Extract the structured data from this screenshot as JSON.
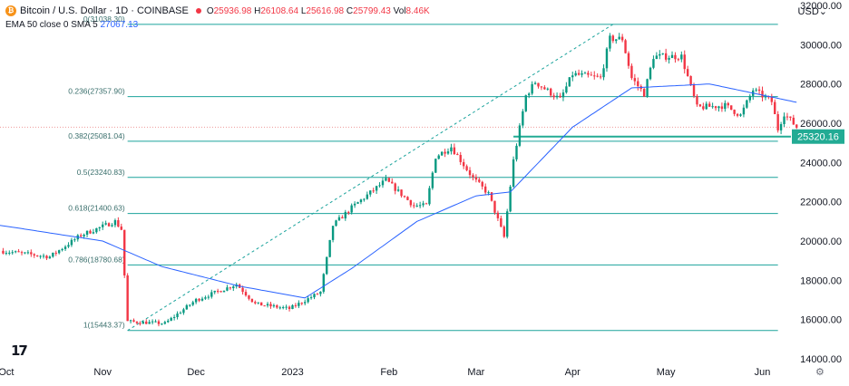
{
  "header": {
    "symbol": "Bitcoin / U.S. Dollar · 1D · COINBASE",
    "o_label": "O",
    "o_value": "25936.98",
    "h_label": "H",
    "h_value": "26108.64",
    "l_label": "L",
    "l_value": "25616.98",
    "c_label": "C",
    "c_value": "25799.43",
    "vol_label": "Vol",
    "vol_value": "8.46K",
    "indicator": "EMA 50 close 0 SMA 5",
    "indicator_value": "27067.13",
    "currency": "USD"
  },
  "icons": [
    "bitcoin-icon",
    "tradingview-logo-icon",
    "settings-icon"
  ],
  "colors": {
    "up": "#089981",
    "down": "#f23645",
    "ema": "#2962ff",
    "fib": "#1ba39c",
    "current_price_line": "#ef9a9a",
    "support_label_bg": "#22ab94"
  },
  "chart_data": {
    "type": "candlestick",
    "title": "Bitcoin / U.S. Dollar · 1D · COINBASE",
    "y_axis": {
      "min": 14000,
      "max": 32000,
      "ticks": [
        14000,
        16000,
        18000,
        20000,
        22000,
        24000,
        26000,
        28000,
        30000,
        32000
      ],
      "tick_labels": [
        "14000.00",
        "16000.00",
        "18000.00",
        "20000.00",
        "22000.00",
        "24000.00",
        "26000.00",
        "28000.00",
        "30000.00",
        "32000.00"
      ],
      "position": "right",
      "unit": "USD"
    },
    "x_axis": {
      "start": "2022-09-29",
      "end": "2023-06-30",
      "ticks": [
        {
          "date": "2022-10-01",
          "label": "Oct"
        },
        {
          "date": "2022-11-01",
          "label": "Nov"
        },
        {
          "date": "2022-12-01",
          "label": "Dec"
        },
        {
          "date": "2023-01-01",
          "label": "2023"
        },
        {
          "date": "2023-02-01",
          "label": "Feb"
        },
        {
          "date": "2023-03-01",
          "label": "Mar"
        },
        {
          "date": "2023-04-01",
          "label": "Apr"
        },
        {
          "date": "2023-05-01",
          "label": "May"
        },
        {
          "date": "2023-06-01",
          "label": "Jun"
        }
      ]
    },
    "grid": false,
    "price_keypoints": [
      {
        "date": "2022-09-29",
        "price": 19500
      },
      {
        "date": "2022-10-15",
        "price": 19200
      },
      {
        "date": "2022-10-25",
        "price": 20300
      },
      {
        "date": "2022-11-05",
        "price": 21000
      },
      {
        "date": "2022-11-07",
        "price": 20600
      },
      {
        "date": "2022-11-09",
        "price": 15900
      },
      {
        "date": "2022-11-21",
        "price": 15800
      },
      {
        "date": "2022-12-01",
        "price": 17000
      },
      {
        "date": "2022-12-14",
        "price": 17800
      },
      {
        "date": "2022-12-20",
        "price": 16800
      },
      {
        "date": "2022-12-31",
        "price": 16550
      },
      {
        "date": "2023-01-10",
        "price": 17400
      },
      {
        "date": "2023-01-14",
        "price": 20800
      },
      {
        "date": "2023-01-20",
        "price": 21700
      },
      {
        "date": "2023-01-31",
        "price": 23100
      },
      {
        "date": "2023-02-09",
        "price": 21800
      },
      {
        "date": "2023-02-13",
        "price": 21800
      },
      {
        "date": "2023-02-16",
        "price": 24300
      },
      {
        "date": "2023-02-21",
        "price": 24800
      },
      {
        "date": "2023-02-28",
        "price": 23200
      },
      {
        "date": "2023-03-05",
        "price": 22400
      },
      {
        "date": "2023-03-10",
        "price": 20200
      },
      {
        "date": "2023-03-13",
        "price": 24100
      },
      {
        "date": "2023-03-17",
        "price": 27400
      },
      {
        "date": "2023-03-20",
        "price": 28100
      },
      {
        "date": "2023-03-28",
        "price": 27200
      },
      {
        "date": "2023-04-01",
        "price": 28500
      },
      {
        "date": "2023-04-10",
        "price": 28300
      },
      {
        "date": "2023-04-13",
        "price": 30300
      },
      {
        "date": "2023-04-17",
        "price": 30300
      },
      {
        "date": "2023-04-20",
        "price": 28300
      },
      {
        "date": "2023-04-24",
        "price": 27500
      },
      {
        "date": "2023-04-27",
        "price": 29400
      },
      {
        "date": "2023-05-06",
        "price": 29400
      },
      {
        "date": "2023-05-11",
        "price": 26800
      },
      {
        "date": "2023-05-20",
        "price": 26900
      },
      {
        "date": "2023-05-25",
        "price": 26400
      },
      {
        "date": "2023-05-29",
        "price": 27700
      },
      {
        "date": "2023-06-04",
        "price": 27100
      },
      {
        "date": "2023-06-06",
        "price": 25700
      },
      {
        "date": "2023-06-08",
        "price": 26500
      },
      {
        "date": "2023-06-12",
        "price": 25800
      }
    ],
    "ema_keypoints": [
      {
        "date": "2022-09-29",
        "price": 20800
      },
      {
        "date": "2022-11-01",
        "price": 20000
      },
      {
        "date": "2022-11-20",
        "price": 18700
      },
      {
        "date": "2022-12-15",
        "price": 17700
      },
      {
        "date": "2023-01-05",
        "price": 17100
      },
      {
        "date": "2023-01-20",
        "price": 18600
      },
      {
        "date": "2023-02-10",
        "price": 21000
      },
      {
        "date": "2023-03-01",
        "price": 22300
      },
      {
        "date": "2023-03-12",
        "price": 22500
      },
      {
        "date": "2023-04-01",
        "price": 25800
      },
      {
        "date": "2023-04-20",
        "price": 27800
      },
      {
        "date": "2023-05-15",
        "price": 28000
      },
      {
        "date": "2023-06-12",
        "price": 27067.13
      }
    ],
    "fibonacci": {
      "start_date": "2022-11-09",
      "end_date": "2023-04-14",
      "extend_to": "2023-06-06",
      "levels": [
        {
          "label": "0(31038.30)",
          "price": 31038.3
        },
        {
          "label": "0.236(27357.90)",
          "price": 27357.9
        },
        {
          "label": "0.382(25081.04)",
          "price": 25081.04
        },
        {
          "label": "0.5(23240.83)",
          "price": 23240.83
        },
        {
          "label": "0.618(21400.63)",
          "price": 21400.63
        },
        {
          "label": "0.786(18780.68)",
          "price": 18780.68
        },
        {
          "label": "1(15443.37)",
          "price": 15443.37
        }
      ]
    },
    "support_line": {
      "price": 25320.16,
      "label": "25320.16",
      "from_date": "2023-03-13"
    },
    "current_price": 25799.43,
    "legend": "none"
  }
}
